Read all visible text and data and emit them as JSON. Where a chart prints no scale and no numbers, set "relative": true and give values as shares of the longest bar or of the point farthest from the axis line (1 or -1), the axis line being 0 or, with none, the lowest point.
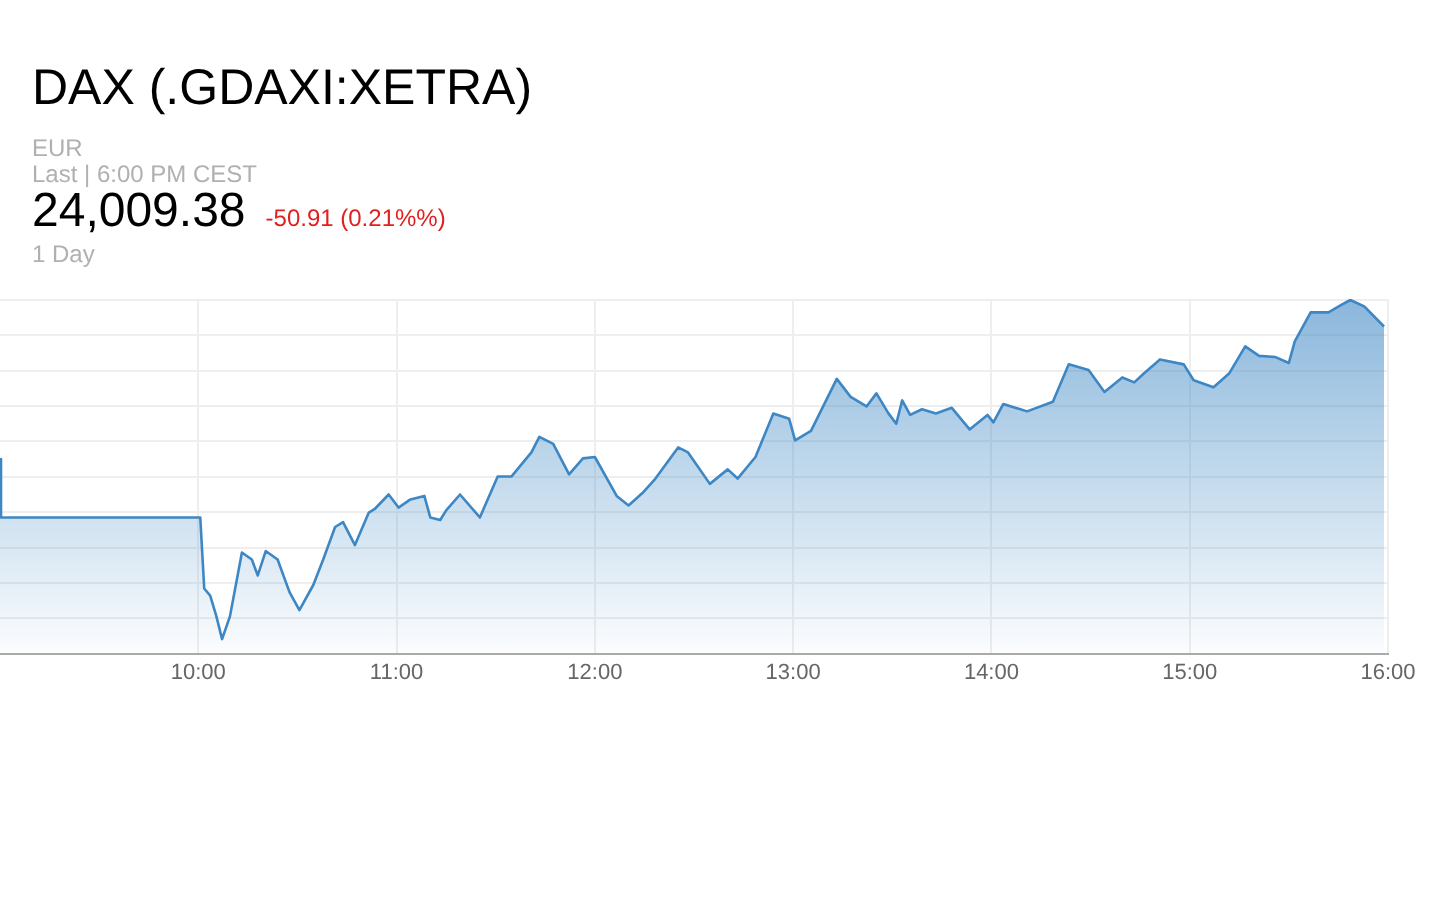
{
  "chart_data": {
    "type": "area",
    "title": "DAX (.GDAXI:XETRA)",
    "subtitle": "EUR",
    "annotations": [
      "Last | 6:00 PM CEST",
      "24,009.38",
      "-50.91 (0.21%%)",
      "1 Day"
    ],
    "relative": true,
    "grid": true,
    "legend": false,
    "marker": "none",
    "line_style": "solid",
    "xlim": [
      9,
      16
    ],
    "xticks": [
      {
        "value": 10,
        "label": "10:00"
      },
      {
        "value": 11,
        "label": "11:00"
      },
      {
        "value": 12,
        "label": "12:00"
      },
      {
        "value": 13,
        "label": "13:00"
      },
      {
        "value": 14,
        "label": "14:00"
      },
      {
        "value": 15,
        "label": "15:00"
      },
      {
        "value": 16,
        "label": "16:00"
      }
    ],
    "series": [
      {
        "color": "#3d87c4",
        "x": [
          9.0,
          9.005,
          10.01,
          10.03,
          10.06,
          10.09,
          10.12,
          10.16,
          10.22,
          10.27,
          10.3,
          10.34,
          10.4,
          10.46,
          10.51,
          10.58,
          10.63,
          10.69,
          10.73,
          10.79,
          10.86,
          10.89,
          10.96,
          11.01,
          11.07,
          11.14,
          11.17,
          11.22,
          11.25,
          11.32,
          11.42,
          11.51,
          11.58,
          11.68,
          11.72,
          11.79,
          11.87,
          11.94,
          12.0,
          12.11,
          12.17,
          12.24,
          12.3,
          12.42,
          12.47,
          12.58,
          12.67,
          12.72,
          12.81,
          12.9,
          12.98,
          13.01,
          13.09,
          13.22,
          13.29,
          13.37,
          13.42,
          13.48,
          13.52,
          13.55,
          13.59,
          13.65,
          13.72,
          13.8,
          13.89,
          13.98,
          14.01,
          14.06,
          14.18,
          14.31,
          14.39,
          14.49,
          14.57,
          14.66,
          14.72,
          14.77,
          14.85,
          14.97,
          15.02,
          15.12,
          15.2,
          15.28,
          15.35,
          15.43,
          15.5,
          15.53,
          15.61,
          15.7,
          15.76,
          15.81,
          15.88,
          15.98
        ],
        "values": [
          0.55,
          0.385,
          0.385,
          0.184,
          0.164,
          0.108,
          0.041,
          0.106,
          0.286,
          0.266,
          0.221,
          0.29,
          0.266,
          0.174,
          0.123,
          0.194,
          0.266,
          0.358,
          0.372,
          0.307,
          0.399,
          0.409,
          0.45,
          0.413,
          0.436,
          0.446,
          0.385,
          0.378,
          0.405,
          0.45,
          0.385,
          0.501,
          0.501,
          0.569,
          0.613,
          0.593,
          0.507,
          0.552,
          0.556,
          0.446,
          0.419,
          0.454,
          0.491,
          0.583,
          0.569,
          0.48,
          0.521,
          0.495,
          0.556,
          0.679,
          0.664,
          0.603,
          0.63,
          0.777,
          0.726,
          0.699,
          0.736,
          0.68,
          0.65,
          0.716,
          0.675,
          0.691,
          0.679,
          0.695,
          0.634,
          0.675,
          0.654,
          0.706,
          0.685,
          0.712,
          0.818,
          0.802,
          0.74,
          0.781,
          0.767,
          0.793,
          0.832,
          0.818,
          0.773,
          0.753,
          0.793,
          0.869,
          0.842,
          0.839,
          0.822,
          0.883,
          0.965,
          0.965,
          0.985,
          1.0,
          0.982,
          0.925
        ]
      }
    ]
  }
}
